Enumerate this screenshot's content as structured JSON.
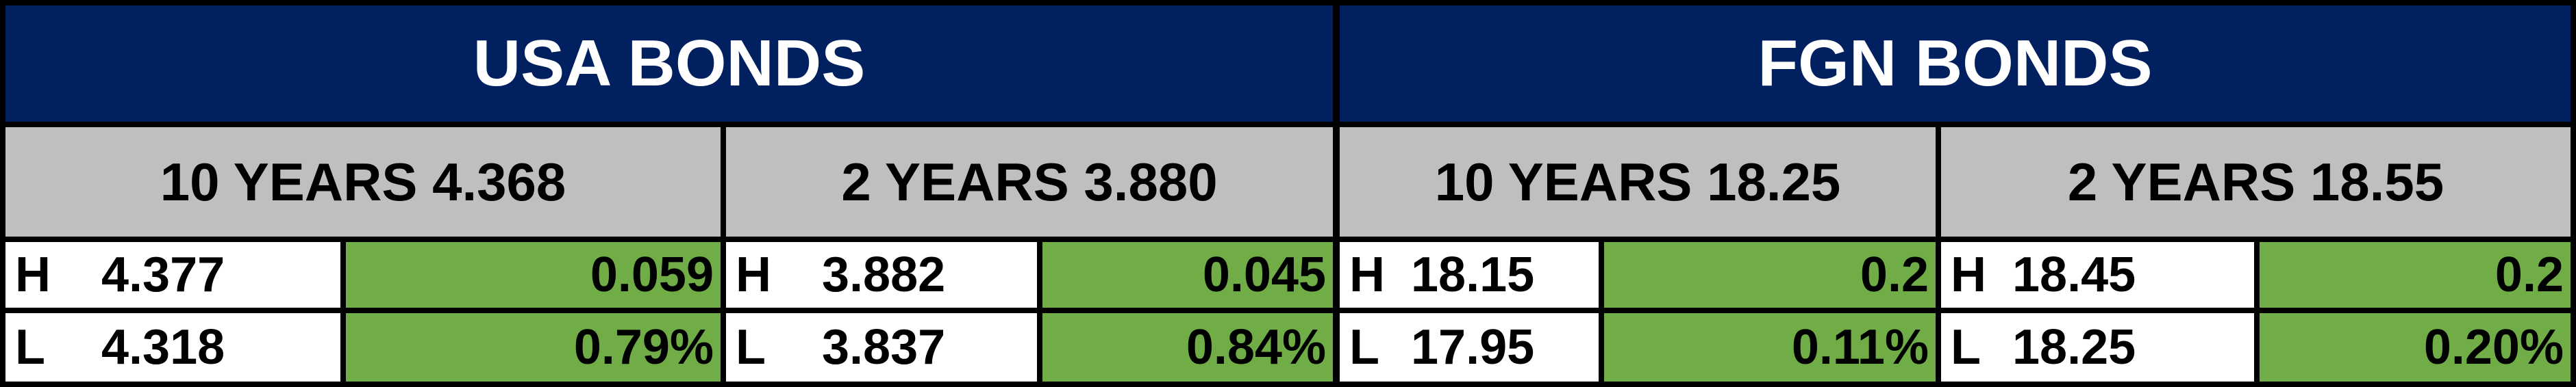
{
  "groups": [
    {
      "title": "USA BONDS",
      "sections": [
        {
          "heading": "10 YEARS 4.368",
          "high_label": "H",
          "high": "4.377",
          "change": "0.059",
          "low_label": "L",
          "low": "4.318",
          "change_pct": "0.79%"
        },
        {
          "heading": "2 YEARS 3.880",
          "high_label": "H",
          "high": "3.882",
          "change": "0.045",
          "low_label": "L",
          "low": "3.837",
          "change_pct": "0.84%"
        }
      ]
    },
    {
      "title": "FGN BONDS",
      "sections": [
        {
          "heading": "10 YEARS 18.25",
          "high_label": "H",
          "high": "18.15",
          "change": "0.2",
          "low_label": "L",
          "low": "17.95",
          "change_pct": "0.11%"
        },
        {
          "heading": "2 YEARS 18.55",
          "high_label": "H",
          "high": "18.45",
          "change": "0.2",
          "low_label": "L",
          "low": "18.25",
          "change_pct": "0.20%"
        }
      ]
    }
  ]
}
